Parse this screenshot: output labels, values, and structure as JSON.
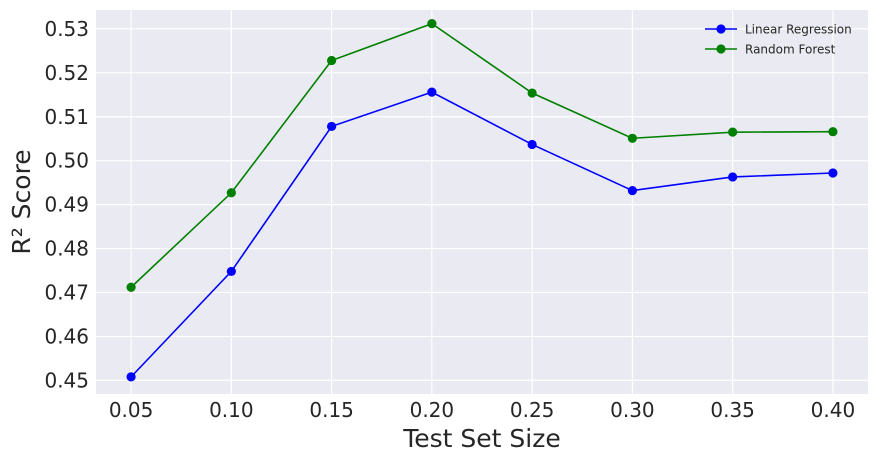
{
  "chart_data": {
    "type": "line",
    "title": "",
    "xlabel": "Test Set Size",
    "ylabel": "R² Score",
    "x": [
      0.05,
      0.1,
      0.15,
      0.2,
      0.25,
      0.3,
      0.35,
      0.4
    ],
    "x_tick_labels": [
      "0.05",
      "0.10",
      "0.15",
      "0.20",
      "0.25",
      "0.30",
      "0.35",
      "0.40"
    ],
    "y_ticks": [
      0.45,
      0.46,
      0.47,
      0.48,
      0.49,
      0.5,
      0.51,
      0.52,
      0.53
    ],
    "y_tick_labels": [
      "0.45",
      "0.46",
      "0.47",
      "0.48",
      "0.49",
      "0.50",
      "0.51",
      "0.52",
      "0.53"
    ],
    "xlim": [
      0.0325,
      0.4175
    ],
    "ylim": [
      0.4469,
      0.5343
    ],
    "grid": true,
    "legend_position": "top-right",
    "background_color": "#eaeaf2",
    "grid_color": "#ffffff",
    "series": [
      {
        "name": "Linear Regression",
        "color": "#0000ff",
        "values": [
          0.4508,
          0.4748,
          0.5078,
          0.5156,
          0.5037,
          0.4932,
          0.4963,
          0.4972
        ]
      },
      {
        "name": "Random Forest",
        "color": "#008000",
        "values": [
          0.4712,
          0.4927,
          0.5228,
          0.5312,
          0.5154,
          0.5051,
          0.5065,
          0.5066
        ]
      }
    ]
  }
}
